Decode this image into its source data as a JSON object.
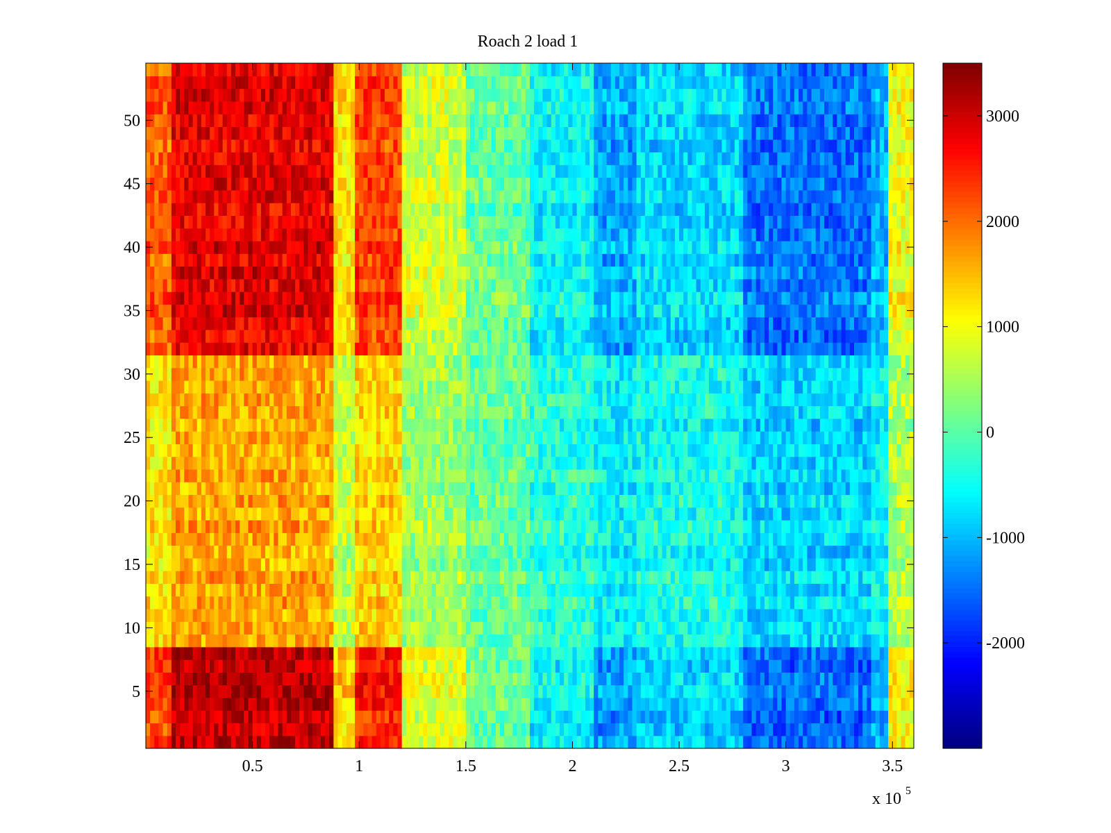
{
  "chart_data": {
    "type": "heatmap",
    "title": "Roach 2 load 1",
    "xlabel": "",
    "ylabel": "",
    "x_multiplier_label": {
      "base": "x 10",
      "exponent": "5"
    },
    "xlim": [
      0,
      3.6
    ],
    "ylim": [
      0.5,
      54.5
    ],
    "x_ticks": [
      0.5,
      1,
      1.5,
      2,
      2.5,
      3,
      3.5
    ],
    "x_tick_labels": [
      "0.5",
      "1",
      "1.5",
      "2",
      "2.5",
      "3",
      "3.5"
    ],
    "y_ticks": [
      5,
      10,
      15,
      20,
      25,
      30,
      35,
      40,
      45,
      50
    ],
    "y_tick_labels": [
      "5",
      "10",
      "15",
      "20",
      "25",
      "30",
      "35",
      "40",
      "45",
      "50"
    ],
    "colormap": "jet",
    "clim": [
      -3000,
      3500
    ],
    "colorbar_ticks": [
      3000,
      2000,
      1000,
      0,
      -1000,
      -2000
    ],
    "colorbar_tick_labels": [
      "3000",
      "2000",
      "1000",
      "0",
      "-1000",
      "-2000"
    ],
    "rows": 54,
    "x_segments": [
      {
        "x_end": 0.12,
        "mean": 1900
      },
      {
        "x_end": 0.88,
        "mean": 2600
      },
      {
        "x_end": 0.98,
        "mean": 1100
      },
      {
        "x_end": 1.2,
        "mean": 2100
      },
      {
        "x_end": 1.5,
        "mean": 700
      },
      {
        "x_end": 1.8,
        "mean": 100
      },
      {
        "x_end": 2.1,
        "mean": -500
      },
      {
        "x_end": 2.3,
        "mean": -1000
      },
      {
        "x_end": 2.8,
        "mean": -700
      },
      {
        "x_end": 3.4,
        "mean": -1300
      },
      {
        "x_end": 3.48,
        "mean": -900
      },
      {
        "x_end": 3.6,
        "mean": 900
      }
    ],
    "row_band_descriptions": [
      {
        "rows": [
          1,
          8
        ],
        "level": "high contrast: dark red left, dark blue right"
      },
      {
        "rows": [
          9,
          31
        ],
        "level": "smooth gradient: orange left to blue right"
      },
      {
        "rows": [
          32,
          54
        ],
        "level": "high contrast: red left, blue right"
      }
    ]
  }
}
